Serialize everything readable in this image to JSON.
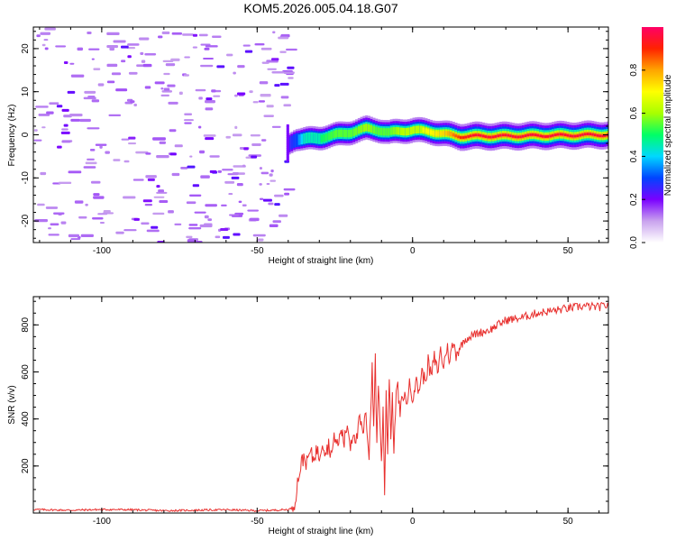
{
  "title": "KOM5.2026.005.04.18.G07",
  "chart_data": [
    {
      "type": "heatmap",
      "title": "KOM5.2026.005.04.18.G07",
      "xlabel": "Height of straight line (km)",
      "ylabel": "Frequency (Hz)",
      "xlim": [
        -122,
        63
      ],
      "ylim": [
        -25,
        25
      ],
      "xticks": [
        -100,
        -50,
        0,
        50
      ],
      "yticks": [
        -20,
        -10,
        0,
        10,
        20
      ],
      "signal_track": {
        "onset_height_km": -40,
        "x": [
          -40,
          -38,
          -35,
          -30,
          -25,
          -20,
          -15,
          -12,
          -8,
          -5,
          0,
          5,
          10,
          15,
          20,
          30,
          40,
          50,
          63
        ],
        "freq_hz": [
          -2,
          -1,
          -1,
          -0.7,
          0,
          0.6,
          1.5,
          1.2,
          0.5,
          0.8,
          1.1,
          0.8,
          0.2,
          -0.4,
          -0.3,
          -0.3,
          -0.2,
          -0.1,
          0
        ],
        "amplitude": [
          0.25,
          0.3,
          0.45,
          0.5,
          0.55,
          0.55,
          0.6,
          0.55,
          0.55,
          0.6,
          0.65,
          0.7,
          0.75,
          0.9,
          0.95,
          0.95,
          0.95,
          0.95,
          0.95
        ]
      },
      "noise_region_km": [
        -122,
        -40
      ],
      "colorbar": {
        "label": "Normalized spectral amplitude",
        "range": [
          0.0,
          1.0
        ],
        "ticks": [
          0.0,
          0.2,
          0.4,
          0.6,
          0.8
        ],
        "tick_labels": [
          "0.0",
          "0.2",
          "0.4",
          "0.6",
          "0.8"
        ],
        "colors": [
          "#ffffff",
          "#c9a2ee",
          "#7a00ff",
          "#0044ff",
          "#00d8ff",
          "#00ff66",
          "#a8ff00",
          "#ffff00",
          "#ffa500",
          "#ff2200",
          "#ff0066"
        ]
      }
    },
    {
      "type": "line",
      "title": "",
      "xlabel": "Height of straight line (km)",
      "ylabel": "SNR (v/v)",
      "xlim": [
        -122,
        63
      ],
      "ylim": [
        0,
        920
      ],
      "xticks": [
        -100,
        -50,
        0,
        50
      ],
      "yticks": [
        200,
        400,
        600,
        800
      ],
      "color": "#e8302e",
      "series": [
        {
          "name": "SNR",
          "x": [
            -122,
            -110,
            -100,
            -90,
            -80,
            -70,
            -60,
            -50,
            -45,
            -40,
            -39,
            -38,
            -37,
            -36,
            -35,
            -34,
            -33,
            -32,
            -31,
            -30,
            -29,
            -28,
            -27,
            -26,
            -25,
            -24,
            -23,
            -22,
            -21,
            -20,
            -19,
            -18,
            -17,
            -16,
            -15,
            -14,
            -13,
            -12.5,
            -12,
            -11.5,
            -11,
            -10.5,
            -10,
            -9.5,
            -9,
            -8.5,
            -8,
            -7.5,
            -7,
            -6.5,
            -6,
            -5,
            -4,
            -3,
            -2,
            -1,
            0,
            1,
            2,
            3,
            4,
            5,
            6,
            7,
            8,
            9,
            10,
            11,
            12,
            13,
            14,
            15,
            17,
            20,
            25,
            30,
            35,
            40,
            45,
            50,
            55,
            60,
            63
          ],
          "values": [
            15,
            12,
            15,
            14,
            10,
            12,
            14,
            10,
            12,
            15,
            20,
            40,
            130,
            200,
            240,
            210,
            260,
            230,
            270,
            240,
            310,
            260,
            290,
            250,
            330,
            280,
            360,
            300,
            380,
            290,
            350,
            310,
            400,
            330,
            420,
            250,
            610,
            350,
            680,
            280,
            560,
            400,
            200,
            450,
            100,
            520,
            250,
            600,
            330,
            480,
            280,
            560,
            420,
            510,
            470,
            540,
            500,
            560,
            520,
            600,
            560,
            640,
            580,
            660,
            600,
            690,
            620,
            710,
            650,
            720,
            680,
            700,
            740,
            760,
            780,
            820,
            830,
            850,
            860,
            870,
            880,
            875,
            885
          ]
        }
      ]
    }
  ]
}
